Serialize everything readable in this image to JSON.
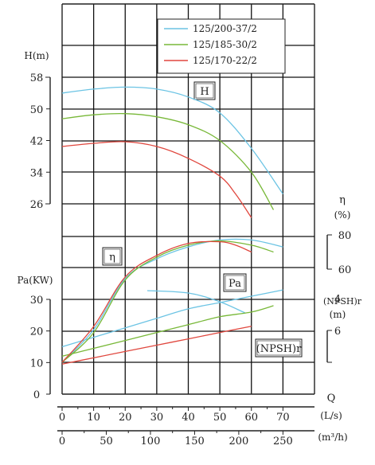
{
  "chart_data": {
    "type": "line",
    "colors": {
      "125/200-37/2": "#6cc4e4",
      "125/185-30/2": "#78b838",
      "125/170-22/2": "#e0473e"
    },
    "legend": [
      "125/200-37/2",
      "125/185-30/2",
      "125/170-22/2"
    ],
    "legend_position": "top-right",
    "panel_labels": {
      "head": "H",
      "efficiency": "η",
      "power": "Pa",
      "npsh": "(NPSH)r"
    },
    "axes": {
      "head": {
        "label": "H(m)",
        "ticks": [
          "58",
          "50",
          "42",
          "34",
          "26"
        ],
        "range": [
          26,
          58
        ]
      },
      "efficiency": {
        "label": "η",
        "unit": "(%)",
        "ticks": [
          "80",
          "60"
        ],
        "range": [
          60,
          80
        ]
      },
      "power": {
        "label": "Pa(KW)",
        "ticks": [
          "30",
          "20",
          "10",
          "0"
        ],
        "range": [
          0,
          30
        ]
      },
      "npsh": {
        "label": "(NPSH)r",
        "unit": "(m)",
        "ticks": [
          "6",
          "4"
        ],
        "range": [
          4,
          6
        ]
      },
      "flow_ls": {
        "label": "Q",
        "unit": "(L/s)",
        "ticks": [
          "0",
          "10",
          "20",
          "30",
          "40",
          "50",
          "60",
          "70"
        ],
        "range": [
          0,
          70
        ]
      },
      "flow_m3h": {
        "label": "(m³/h)",
        "ticks": [
          "0",
          "50",
          "100",
          "150",
          "200",
          "250"
        ],
        "range": [
          0,
          250
        ]
      }
    },
    "series": [
      {
        "name": "125/200-37/2",
        "head": [
          [
            0,
            54
          ],
          [
            10,
            55
          ],
          [
            20,
            55.5
          ],
          [
            30,
            55
          ],
          [
            40,
            53
          ],
          [
            50,
            49
          ],
          [
            60,
            40
          ],
          [
            70,
            28.5
          ]
        ],
        "efficiency": [
          [
            0,
            0
          ],
          [
            10,
            21
          ],
          [
            20,
            54
          ],
          [
            30,
            66
          ],
          [
            40,
            73
          ],
          [
            50,
            77
          ],
          [
            60,
            77
          ],
          [
            70,
            73
          ]
        ],
        "power": [
          [
            0,
            15
          ],
          [
            10,
            18
          ],
          [
            20,
            21
          ],
          [
            30,
            24
          ],
          [
            40,
            27
          ],
          [
            50,
            29
          ],
          [
            60,
            31
          ],
          [
            70,
            33
          ]
        ],
        "npsh": [
          [
            27,
            3.5
          ],
          [
            40,
            3.65
          ],
          [
            50,
            4.2
          ],
          [
            58,
            4.9
          ]
        ]
      },
      {
        "name": "125/185-30/2",
        "head": [
          [
            0,
            47.5
          ],
          [
            10,
            48.5
          ],
          [
            20,
            48.8
          ],
          [
            30,
            48
          ],
          [
            40,
            46
          ],
          [
            50,
            42
          ],
          [
            60,
            34
          ],
          [
            67,
            24.5
          ]
        ],
        "efficiency": [
          [
            0,
            0
          ],
          [
            10,
            19
          ],
          [
            20,
            53
          ],
          [
            30,
            67
          ],
          [
            40,
            74
          ],
          [
            50,
            76.5
          ],
          [
            60,
            74
          ],
          [
            67,
            70
          ]
        ],
        "power": [
          [
            0,
            12
          ],
          [
            10,
            14.5
          ],
          [
            20,
            17
          ],
          [
            30,
            19.5
          ],
          [
            40,
            22
          ],
          [
            50,
            24.5
          ],
          [
            60,
            26
          ],
          [
            67,
            28
          ]
        ]
      },
      {
        "name": "125/170-22/2",
        "head": [
          [
            0,
            40.5
          ],
          [
            10,
            41.3
          ],
          [
            20,
            41.7
          ],
          [
            30,
            40.5
          ],
          [
            40,
            37.5
          ],
          [
            50,
            33
          ],
          [
            55,
            28.5
          ],
          [
            60,
            22.5
          ]
        ],
        "efficiency": [
          [
            0,
            0
          ],
          [
            10,
            23
          ],
          [
            20,
            55
          ],
          [
            30,
            68
          ],
          [
            40,
            75
          ],
          [
            50,
            76
          ],
          [
            55,
            74
          ],
          [
            60,
            70
          ]
        ],
        "power": [
          [
            0,
            9.5
          ],
          [
            10,
            11.5
          ],
          [
            20,
            13.5
          ],
          [
            30,
            15.5
          ],
          [
            40,
            17.5
          ],
          [
            50,
            19.5
          ],
          [
            60,
            21.5
          ]
        ]
      }
    ]
  }
}
